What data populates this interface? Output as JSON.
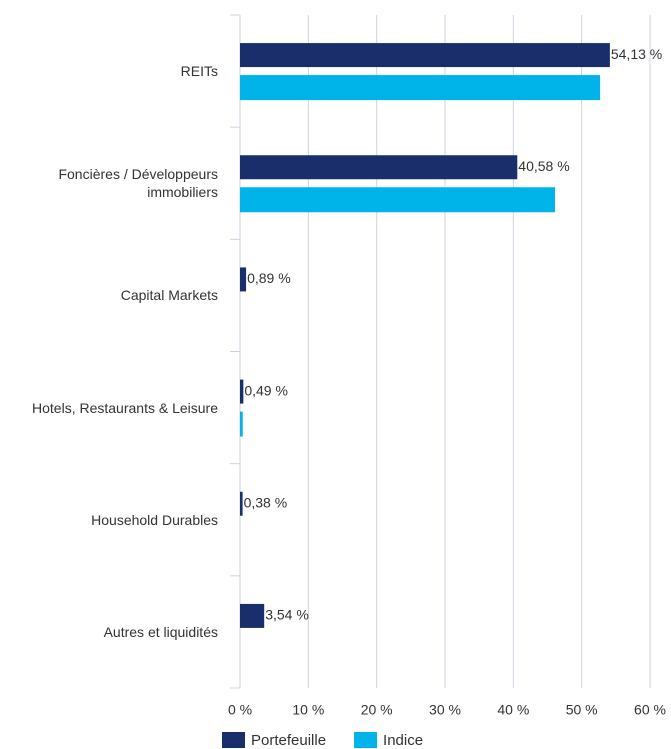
{
  "chart_data": {
    "type": "bar",
    "orientation": "horizontal",
    "categories": [
      "REITs",
      "Foncières / Développeurs immobiliers",
      "Capital Markets",
      "Hotels, Restaurants & Leisure",
      "Household Durables",
      "Autres et liquidités"
    ],
    "series": [
      {
        "name": "Portefeuille",
        "color": "#1b2e6c",
        "values": [
          54.13,
          40.58,
          0.89,
          0.49,
          0.38,
          3.54
        ],
        "value_labels": [
          "54,13 %",
          "40,58 %",
          "0,89 %",
          "0,49 %",
          "0,38 %",
          "3,54 %"
        ]
      },
      {
        "name": "Indice",
        "color": "#00b3e8",
        "values": [
          52.7,
          46.1,
          null,
          0.4,
          null,
          null
        ]
      }
    ],
    "xlim": [
      0,
      60
    ],
    "xticks": [
      {
        "value": 0,
        "label": "0 %"
      },
      {
        "value": 10,
        "label": "10 %"
      },
      {
        "value": 20,
        "label": "20 %"
      },
      {
        "value": 30,
        "label": "30 %"
      },
      {
        "value": 40,
        "label": "40 %"
      },
      {
        "value": 50,
        "label": "50 %"
      },
      {
        "value": 60,
        "label": "60 %"
      }
    ],
    "grid": true,
    "legend": "bottom"
  }
}
